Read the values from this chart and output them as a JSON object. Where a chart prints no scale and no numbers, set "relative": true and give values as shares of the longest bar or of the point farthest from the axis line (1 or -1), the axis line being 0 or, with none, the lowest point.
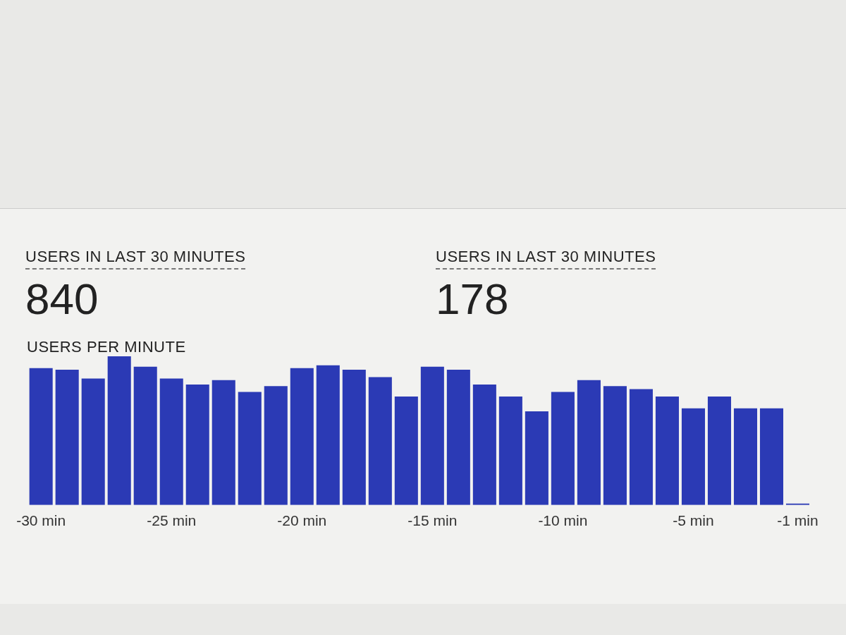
{
  "chart_data": [
    {
      "type": "other",
      "annotations": [
        "USERS IN LAST 30 MINUTES",
        "840",
        "USERS IN LAST 30 MINUTES",
        "178"
      ]
    },
    {
      "type": "bar",
      "title": "USERS PER MINUTE",
      "relative": true,
      "color": "#2b3ab5",
      "categories": [
        "-30 min",
        null,
        null,
        null,
        null,
        "-25 min",
        null,
        null,
        null,
        null,
        "-20 min",
        null,
        null,
        null,
        null,
        "-15 min",
        null,
        null,
        null,
        null,
        "-10 min",
        null,
        null,
        null,
        null,
        "-5 min",
        null,
        null,
        null,
        "-1 min"
      ],
      "values": [
        0.92,
        0.91,
        0.85,
        1,
        0.93,
        0.85,
        0.81,
        0.84,
        0.76,
        0.8,
        0.92,
        0.94,
        0.91,
        0.86,
        0.73,
        0.93,
        0.91,
        0.81,
        0.73,
        0.63,
        0.76,
        0.84,
        0.8,
        0.78,
        0.73,
        0.65,
        0.73,
        0.65,
        0.65,
        0.01
      ]
    }
  ]
}
